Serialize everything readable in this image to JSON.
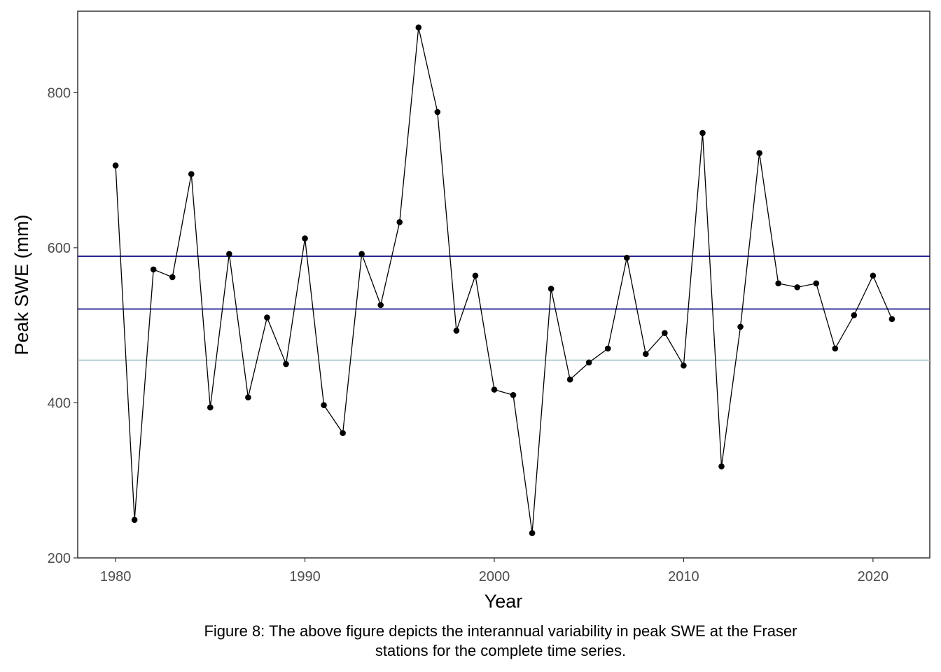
{
  "chart_data": {
    "type": "line",
    "title": "",
    "xlabel": "Year",
    "ylabel": "Peak SWE (mm)",
    "xlim": [
      1978,
      2023
    ],
    "ylim": [
      200,
      905
    ],
    "x_ticks": [
      1980,
      1990,
      2000,
      2010,
      2020
    ],
    "y_ticks": [
      200,
      400,
      600,
      800
    ],
    "grid": false,
    "legend": "none",
    "series": [
      {
        "x": [
          1980,
          1981,
          1982,
          1983,
          1984,
          1985,
          1986,
          1987,
          1988,
          1989,
          1990,
          1991,
          1992,
          1993,
          1994,
          1995,
          1996,
          1997,
          1998,
          1999,
          2000,
          2001,
          2002,
          2003,
          2004,
          2005,
          2006,
          2007,
          2008,
          2009,
          2010,
          2011,
          2012,
          2013,
          2014,
          2015,
          2016,
          2017,
          2018,
          2019,
          2020,
          2021
        ],
        "values": [
          706,
          249,
          572,
          562,
          695,
          394,
          592,
          407,
          510,
          450,
          612,
          397,
          361,
          592,
          526,
          633,
          884,
          775,
          493,
          564,
          417,
          410,
          232,
          547,
          430,
          452,
          470,
          587,
          463,
          490,
          448,
          748,
          318,
          498,
          722,
          554,
          549,
          554,
          470,
          513,
          564,
          508
        ],
        "color": "#000000"
      }
    ],
    "hlines": [
      {
        "y": 589,
        "color": "#000080"
      },
      {
        "y": 521,
        "color": "#000080"
      },
      {
        "y": 455,
        "color": "#9ebcc0"
      }
    ]
  },
  "caption": {
    "line1": "Figure 8: The above figure depicts the interannual variability in peak SWE at the Fraser",
    "line2": "stations for the complete time series."
  }
}
